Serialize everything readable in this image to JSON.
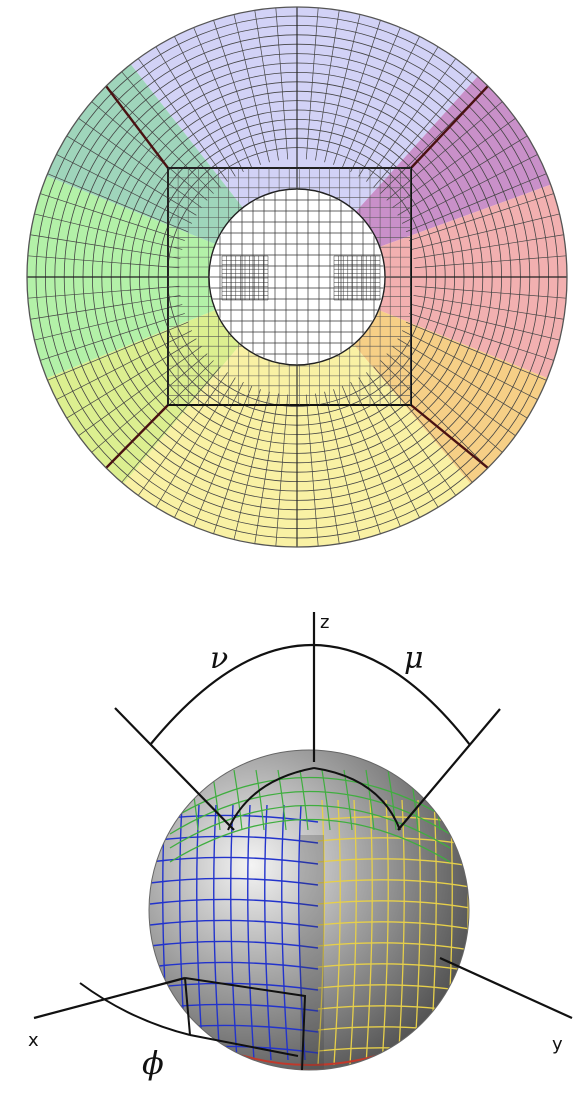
{
  "top_figure": {
    "sector_colors": {
      "top": "#d2d2f6",
      "top_right": "#c990c9",
      "right": "#f2b0b0",
      "bottom_right": "#f6cf86",
      "bottom": "#f9f1a4",
      "bottom_left": "#dcef90",
      "left": "#b3f1a8",
      "top_left": "#9fd5bb"
    },
    "grid_line_color": "#444444",
    "seam_color": "#4a1212"
  },
  "bottom_figure": {
    "axis_labels": {
      "z": "z",
      "x": "x",
      "y": "y"
    },
    "angle_labels": {
      "nu": "ν",
      "mu": "μ",
      "phi": "ϕ"
    },
    "patch_colors": {
      "x_patch": "#2233cc",
      "y_patch": "#e6cf4a",
      "z_patch": "#3fae3f",
      "bottom_patch": "#c0392b"
    }
  }
}
